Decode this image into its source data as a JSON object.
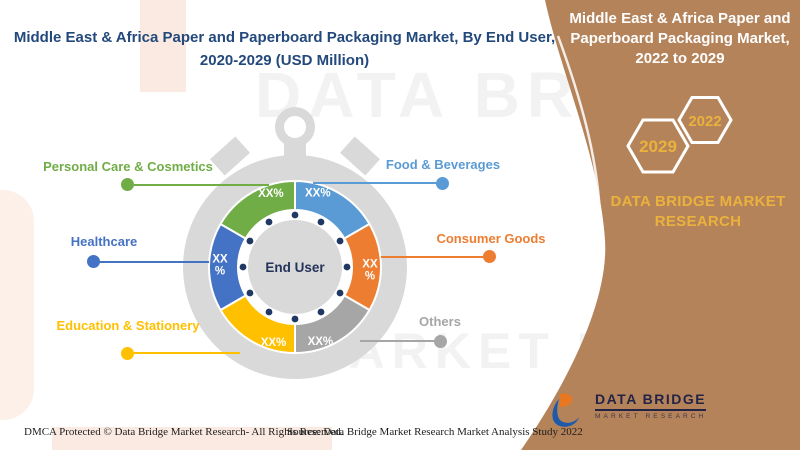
{
  "left_title": {
    "lines": [
      "Middle East & Africa Paper and Paperboard Packaging Market, By End User,",
      "2020-2029 (USD Million)"
    ],
    "color": "#23497c"
  },
  "right_panel": {
    "bg": "#b5835a",
    "title_lines": [
      "Middle East & Africa Paper and",
      "Paperboard Packaging Market,",
      "2022 to 2029"
    ],
    "title_color": "#ffffff",
    "years": [
      "2022",
      "2029"
    ],
    "year_color": "#eab23d",
    "hex_outline_color": "#ffffff",
    "brand_lines": [
      "DATA BRIDGE MARKET",
      "RESEARCH"
    ],
    "brand_color": "#eab23d"
  },
  "watermark": {
    "line1": "DATA BRIDGE",
    "line2": "MARKET RES"
  },
  "logo": {
    "title": "DATA BRIDGE",
    "subtitle": "MARKET RESEARCH",
    "orange": "#e87722",
    "blue": "#1f5aa8",
    "text_color": "#232347"
  },
  "footer": {
    "dmca": "DMCA Protected © Data Bridge Market Research- All Rights Reserved.",
    "source": "Source: Data Bridge Market Research Market Analysis Study 2022"
  },
  "chart_data": {
    "type": "donut",
    "title": "Middle East & Africa Paper and Paperboard Packaging Market, By End User, 2020-2029 (USD Million)",
    "center_label": "End User",
    "center_label_color": "#24335a",
    "tick_dot_color": "#1f3864",
    "body_color": "#d9d9d9",
    "value_text_color": "#ffffff",
    "outer_radius": 86,
    "inner_radius": 57,
    "segments": [
      {
        "label": "Food & Beverages",
        "value_label": "XX%",
        "color": "#5b9bd5",
        "start_deg": 0,
        "sweep_deg": 60,
        "stacked": false,
        "label_deg": 17,
        "label_r": 78
      },
      {
        "label": "Consumer Goods",
        "value_label": "XX%",
        "color": "#ed7d31",
        "start_deg": 60,
        "sweep_deg": 60,
        "stacked": true,
        "label_deg": 92,
        "label_r": 75
      },
      {
        "label": "Others",
        "value_label": "XX%",
        "color": "#a6a6a6",
        "start_deg": 120,
        "sweep_deg": 60,
        "stacked": false,
        "label_deg": 161,
        "label_r": 78
      },
      {
        "label": "Education & Stationery",
        "value_label": "XX%",
        "color": "#ffc000",
        "start_deg": 180,
        "sweep_deg": 60,
        "stacked": false,
        "label_deg": 196,
        "label_r": 78
      },
      {
        "label": "Healthcare",
        "value_label": "XX%",
        "color": "#4472c4",
        "start_deg": 240,
        "sweep_deg": 60,
        "stacked": true,
        "label_deg": 272,
        "label_r": 75
      },
      {
        "label": "Personal Care & Cosmetics",
        "value_label": "XX%",
        "color": "#70ad47",
        "start_deg": 300,
        "sweep_deg": 60,
        "stacked": false,
        "label_deg": 342,
        "label_r": 78
      }
    ]
  }
}
